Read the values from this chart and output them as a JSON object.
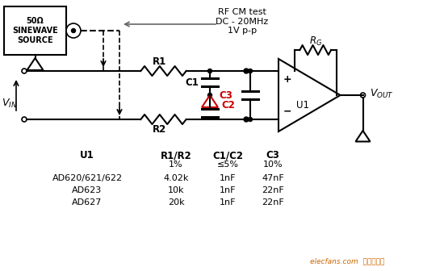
{
  "bg_color": "#ffffff",
  "rf_cm_text": "RF CM test\nDC - 20MHz\n1V p-p",
  "source_label": "50Ω\nSINEWAVE\nSOURCE",
  "line_color": "#000000",
  "red_color": "#cc0000",
  "gray_color": "#666666",
  "table_headers": [
    "U1",
    "R1/R2",
    "C1/C2",
    "C3"
  ],
  "table_subheaders": [
    "",
    "1%",
    "≤5%",
    "10%"
  ],
  "table_rows": [
    [
      "AD620/621/622",
      "4.02k",
      "1nF",
      "47nF"
    ],
    [
      "AD623",
      "10k",
      "1nF",
      "22nF"
    ],
    [
      "AD627",
      "20k",
      "1nF",
      "22nF"
    ]
  ],
  "watermark": "elecfans.com  电子发烧友",
  "watermark_color": "#cc6600"
}
